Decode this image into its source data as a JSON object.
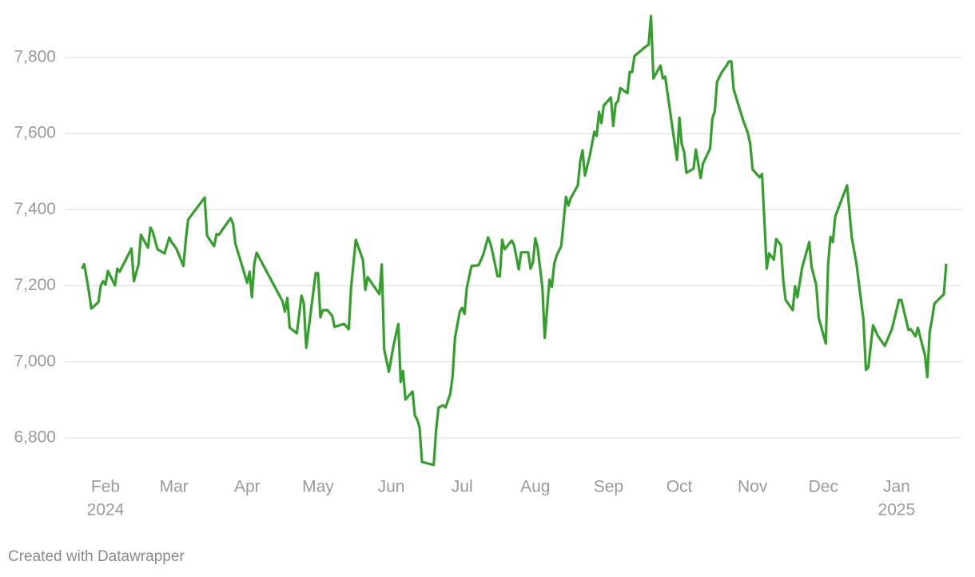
{
  "chart_data": {
    "type": "line",
    "footer": "Created with Datawrapper",
    "color": "#34a02c",
    "grid": true,
    "xlim": [
      13.5,
      393
    ],
    "ylim": [
      6700,
      7900
    ],
    "yticks": [
      {
        "value": 6800,
        "label": "6,800"
      },
      {
        "value": 7000,
        "label": "7,000"
      },
      {
        "value": 7200,
        "label": "7,200"
      },
      {
        "value": 7400,
        "label": "7,400"
      },
      {
        "value": 7600,
        "label": "7,600"
      },
      {
        "value": 7800,
        "label": "7,800"
      }
    ],
    "xticks": [
      {
        "value": 31,
        "label": "Feb",
        "year": "2024"
      },
      {
        "value": 60,
        "label": "Mar"
      },
      {
        "value": 91,
        "label": "Apr"
      },
      {
        "value": 121,
        "label": "May"
      },
      {
        "value": 152,
        "label": "Jun"
      },
      {
        "value": 182,
        "label": "Jul"
      },
      {
        "value": 213,
        "label": "Aug"
      },
      {
        "value": 244,
        "label": "Sep"
      },
      {
        "value": 274,
        "label": "Oct"
      },
      {
        "value": 305,
        "label": "Nov"
      },
      {
        "value": 335,
        "label": "Dec"
      },
      {
        "value": 366,
        "label": "Jan",
        "year": "2025"
      }
    ],
    "x": [
      21,
      22,
      24,
      25,
      28,
      29,
      30,
      31,
      32,
      35,
      36,
      37,
      42,
      43,
      45,
      46,
      49,
      50,
      51,
      53,
      56,
      58,
      59,
      61,
      64,
      65,
      66,
      73,
      74,
      77,
      78,
      79,
      84,
      85,
      86,
      91,
      92,
      93,
      94,
      95,
      106,
      107,
      108,
      109,
      112,
      114,
      115,
      116,
      120,
      121,
      122,
      123,
      125,
      127,
      128,
      132,
      134,
      135,
      137,
      140,
      141,
      142,
      147,
      148,
      149,
      151,
      153,
      155,
      156,
      157,
      158,
      161,
      162,
      163,
      164,
      165,
      170,
      171,
      172,
      174,
      175,
      177,
      178,
      179,
      181,
      182,
      183,
      184,
      186,
      189,
      191,
      193,
      194,
      195,
      197,
      198,
      199,
      200,
      203,
      204,
      206,
      207,
      210,
      211,
      212,
      213,
      214,
      216,
      217,
      219,
      220,
      221,
      222,
      224,
      226,
      227,
      228,
      231,
      232,
      233,
      234,
      236,
      238,
      239,
      240,
      241,
      242,
      245,
      246,
      247,
      248,
      249,
      252,
      253,
      254,
      255,
      259,
      261,
      262,
      263,
      266,
      267,
      268,
      273,
      274,
      275,
      276,
      277,
      280,
      281,
      283,
      284,
      287,
      288,
      289,
      290,
      292,
      294,
      295,
      296,
      297,
      301,
      303,
      304,
      305,
      308,
      309,
      310,
      311,
      312,
      314,
      315,
      317,
      318,
      319,
      322,
      323,
      324,
      326,
      329,
      330,
      332,
      333,
      336,
      337,
      338,
      339,
      340,
      345,
      347,
      349,
      351,
      352,
      353,
      354,
      356,
      358,
      361,
      364,
      367,
      368,
      371,
      372,
      374,
      375,
      378,
      379,
      380,
      381,
      382,
      386,
      387
    ],
    "values": [
      7245,
      7257,
      7184,
      7140,
      7157,
      7201,
      7212,
      7203,
      7239,
      7201,
      7245,
      7237,
      7298,
      7212,
      7257,
      7334,
      7300,
      7353,
      7342,
      7296,
      7285,
      7327,
      7315,
      7298,
      7252,
      7321,
      7374,
      7432,
      7332,
      7304,
      7336,
      7334,
      7378,
      7363,
      7311,
      7208,
      7237,
      7170,
      7258,
      7287,
      7159,
      7132,
      7168,
      7090,
      7075,
      7174,
      7153,
      7037,
      7233,
      7233,
      7117,
      7136,
      7136,
      7121,
      7092,
      7100,
      7086,
      7195,
      7321,
      7268,
      7189,
      7223,
      7178,
      7256,
      7033,
      6974,
      7044,
      7100,
      6947,
      6976,
      6901,
      6922,
      6859,
      6848,
      6827,
      6737,
      6729,
      6821,
      6880,
      6886,
      6880,
      6916,
      6964,
      7063,
      7132,
      7142,
      7126,
      7195,
      7252,
      7254,
      7283,
      7327,
      7311,
      7285,
      7225,
      7225,
      7321,
      7296,
      7319,
      7307,
      7243,
      7288,
      7288,
      7245,
      7262,
      7325,
      7300,
      7195,
      7063,
      7216,
      7197,
      7258,
      7279,
      7305,
      7434,
      7411,
      7430,
      7464,
      7527,
      7556,
      7490,
      7540,
      7605,
      7594,
      7657,
      7628,
      7674,
      7695,
      7620,
      7678,
      7685,
      7720,
      7706,
      7762,
      7762,
      7804,
      7825,
      7834,
      7909,
      7745,
      7779,
      7745,
      7750,
      7531,
      7642,
      7573,
      7552,
      7497,
      7508,
      7558,
      7483,
      7521,
      7561,
      7640,
      7659,
      7737,
      7762,
      7779,
      7790,
      7790,
      7716,
      7636,
      7601,
      7573,
      7506,
      7485,
      7494,
      7374,
      7245,
      7285,
      7269,
      7323,
      7307,
      7214,
      7163,
      7136,
      7199,
      7170,
      7248,
      7315,
      7250,
      7201,
      7116,
      7048,
      7258,
      7329,
      7315,
      7382,
      7464,
      7327,
      7258,
      7157,
      7111,
      6979,
      6985,
      7096,
      7069,
      7042,
      7086,
      7163,
      7163,
      7084,
      7086,
      7067,
      7090,
      7017,
      6960,
      7079,
      7111,
      7153,
      7178,
      7258
    ]
  }
}
